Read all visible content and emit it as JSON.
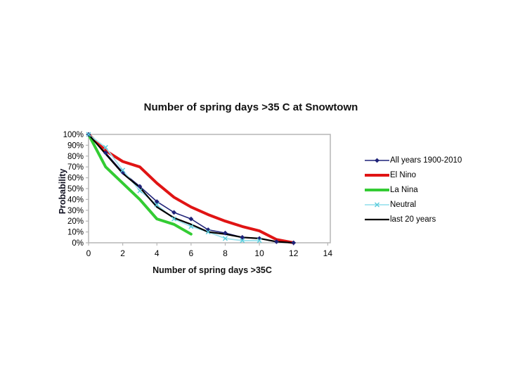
{
  "chart_data": {
    "type": "line",
    "title": "Number of spring days >35 C at Snowtown",
    "xlabel": "Number of spring days >35C",
    "ylabel": "Probability",
    "xlim": [
      0,
      14.15
    ],
    "ylim": [
      0,
      100
    ],
    "x_ticks": [
      0,
      2,
      4,
      6,
      8,
      10,
      12,
      14
    ],
    "y_ticks": [
      "100%",
      "90%",
      "80%",
      "70%",
      "60%",
      "50%",
      "40%",
      "30%",
      "20%",
      "10%",
      "0%"
    ],
    "y_tick_values": [
      100,
      90,
      80,
      70,
      60,
      50,
      40,
      30,
      20,
      10,
      0
    ],
    "grid": false,
    "legend_position": "right",
    "axis_color": "#b6b6b6",
    "series": [
      {
        "name": "All years 1900-2010",
        "color": "#1f2278",
        "line_width": 1.6,
        "marker": "diamond",
        "marker_color": "#1f2278",
        "x": [
          0,
          1,
          2,
          3,
          4,
          5,
          6,
          7,
          8,
          9,
          10,
          11,
          12
        ],
        "y": [
          100,
          83,
          65,
          52,
          38,
          28,
          22,
          12,
          9,
          5,
          4,
          1,
          0
        ]
      },
      {
        "name": "El Nino",
        "color": "#e01414",
        "line_width": 4,
        "marker": "none",
        "x": [
          0,
          1,
          2,
          3,
          4,
          5,
          6,
          7,
          8,
          9,
          10,
          11,
          12
        ],
        "y": [
          100,
          85,
          75,
          70,
          55,
          42,
          33,
          26,
          20,
          15,
          11,
          3,
          0
        ]
      },
      {
        "name": "La Nina",
        "color": "#33cc33",
        "line_width": 4,
        "marker": "none",
        "x": [
          0,
          1,
          2,
          3,
          4,
          5,
          6
        ],
        "y": [
          100,
          70,
          55,
          40,
          22,
          17,
          8
        ]
      },
      {
        "name": "Neutral",
        "color": "#9fe2ee",
        "line_width": 1.8,
        "marker": "x",
        "marker_color": "#58ccdb",
        "x": [
          0,
          1,
          2,
          3,
          4,
          5,
          6,
          7,
          8,
          9,
          10
        ],
        "y": [
          100,
          88,
          67,
          48,
          35,
          22,
          15,
          10,
          4,
          2,
          2
        ]
      },
      {
        "name": "last 20 years",
        "color": "#000000",
        "line_width": 2.2,
        "marker": "none",
        "x": [
          0,
          1,
          2,
          3,
          4,
          5,
          6,
          7,
          8,
          9,
          10,
          11,
          12
        ],
        "y": [
          100,
          82,
          64,
          51,
          33,
          23,
          17,
          10,
          8,
          5,
          4,
          1,
          0
        ]
      }
    ]
  }
}
